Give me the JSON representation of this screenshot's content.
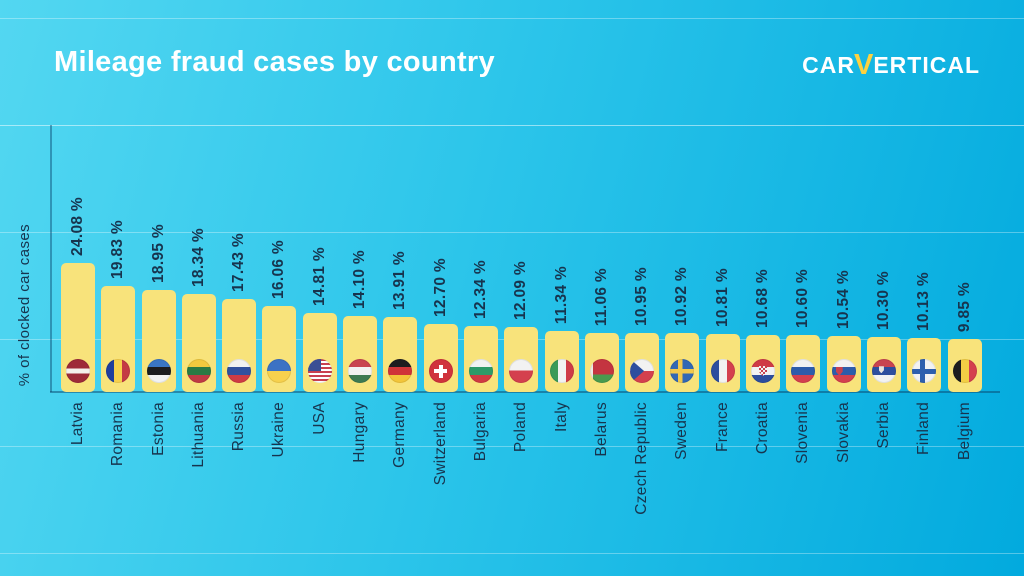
{
  "header": {
    "title": "Mileage fraud cases by country",
    "logo": {
      "prefix": "CAR",
      "v_mark": "V",
      "suffix": "ERTICAL"
    }
  },
  "chart_data": {
    "type": "bar",
    "title": "Mileage fraud cases by country",
    "xlabel": "",
    "ylabel": "% of clocked car cases",
    "unit": "%",
    "ylim": [
      0,
      50
    ],
    "grid": "faint horizontal lines",
    "legend": "none",
    "categories": [
      "Latvia",
      "Romania",
      "Estonia",
      "Lithuania",
      "Russia",
      "Ukraine",
      "USA",
      "Hungary",
      "Germany",
      "Switzerland",
      "Bulgaria",
      "Poland",
      "Italy",
      "Belarus",
      "Czech Republic",
      "Sweden",
      "France",
      "Croatia",
      "Slovenia",
      "Slovakia",
      "Serbia",
      "Finland",
      "Belgium"
    ],
    "values": [
      24.08,
      19.83,
      18.95,
      18.34,
      17.43,
      16.06,
      14.81,
      14.1,
      13.91,
      12.7,
      12.34,
      12.09,
      11.34,
      11.06,
      10.95,
      10.92,
      10.81,
      10.68,
      10.6,
      10.54,
      10.3,
      10.13,
      9.85
    ],
    "value_labels": [
      "24.08 %",
      "19.83 %",
      "18.95 %",
      "18.34 %",
      "17.43 %",
      "16.06 %",
      "14.81 %",
      "14.10 %",
      "13.91 %",
      "12.70 %",
      "12.34 %",
      "12.09 %",
      "11.34 %",
      "11.06 %",
      "10.95 %",
      "10.92 %",
      "10.81 %",
      "10.68 %",
      "10.60 %",
      "10.54 %",
      "10.30 %",
      "10.13 %",
      "9.85 %"
    ],
    "flag_icons": [
      "latvia-flag-icon",
      "romania-flag-icon",
      "estonia-flag-icon",
      "lithuania-flag-icon",
      "russia-flag-icon",
      "ukraine-flag-icon",
      "usa-flag-icon",
      "hungary-flag-icon",
      "germany-flag-icon",
      "switzerland-flag-icon",
      "bulgaria-flag-icon",
      "poland-flag-icon",
      "italy-flag-icon",
      "belarus-flag-icon",
      "czech-republic-flag-icon",
      "sweden-flag-icon",
      "france-flag-icon",
      "croatia-flag-icon",
      "slovenia-flag-icon",
      "slovakia-flag-icon",
      "serbia-flag-icon",
      "finland-flag-icon",
      "belgium-flag-icon"
    ]
  },
  "colors": {
    "background_start": "#53D7F1",
    "background_end": "#02AADE",
    "bar_fill": "#F8E37B",
    "label_text": "#17344E",
    "title_text": "#FFFFFF",
    "logo_accent": "#FFD23F",
    "axis_line": "rgba(10,70,110,0.5)"
  }
}
